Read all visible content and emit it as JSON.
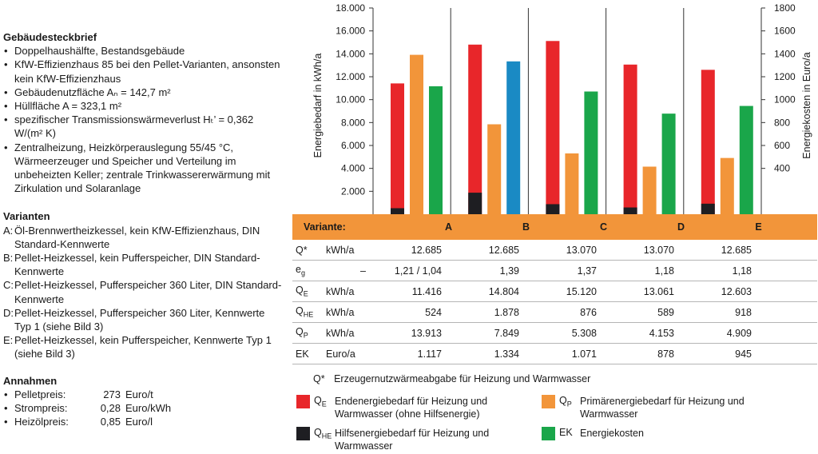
{
  "profile": {
    "heading": "Gebäudesteckbrief",
    "bullets": [
      "Doppelhaushälfte, Bestandsgebäude",
      "KfW-Effizienzhaus 85 bei den Pellet-Varianten, ansonsten kein KfW-Effizienzhaus",
      "Gebäudenutzfläche Aₙ = 142,7 m²",
      "Hüllfläche A = 323,1 m²",
      "spezifischer Transmissionswärmeverlust Hₜ’ = 0,362 W/(m² K)",
      "Zentralheizung, Heizkörperauslegung 55/45 °C, Wärmeerzeuger und Speicher und Verteilung im unbeheizten Keller; zentrale Trinkwassererwärmung mit Zirkulation und Solaranlage"
    ]
  },
  "variants": {
    "heading": "Varianten",
    "items": [
      {
        "letter": "A:",
        "text": "Öl-Brennwertheizkessel, kein KfW-Effizienzhaus, DIN Standard-Kennwerte"
      },
      {
        "letter": "B:",
        "text": "Pellet-Heizkessel, kein Pufferspeicher, DIN Standard-Kennwerte"
      },
      {
        "letter": "C:",
        "text": "Pellet-Heizkessel, Pufferspeicher 360 Liter, DIN Standard-Kennwerte"
      },
      {
        "letter": "D:",
        "text": "Pellet-Heizkessel, Pufferspeicher 360 Liter, Kennwerte Typ 1 (siehe Bild 3)"
      },
      {
        "letter": "E:",
        "text": "Pellet-Heizkessel, kein Pufferspeicher, Kennwerte Typ 1 (siehe Bild 3)"
      }
    ]
  },
  "assumptions": {
    "heading": "Annahmen",
    "rows": [
      {
        "name": "Pelletpreis:",
        "value": "273",
        "unit": "Euro/t"
      },
      {
        "name": "Strompreis:",
        "value": "0,28",
        "unit": "Euro/kWh"
      },
      {
        "name": "Heizölpreis:",
        "value": "0,85",
        "unit": "Euro/l"
      }
    ]
  },
  "chart_data": {
    "type": "bar",
    "categories": [
      "A",
      "B",
      "C",
      "D",
      "E"
    ],
    "ylabel": "Energiebedarf in kWh/a",
    "ylabel_right": "Energiekosten in Euro/a",
    "ylim": [
      0,
      18000
    ],
    "ylim_right": [
      0,
      1800
    ],
    "yticks": [
      "2.000",
      "4.000",
      "6.000",
      "8.000",
      "10.000",
      "12.000",
      "14.000",
      "16.000",
      "18.000"
    ],
    "yticks_right": [
      "400",
      "600",
      "800",
      "1000",
      "1200",
      "1400",
      "1600",
      "1800"
    ],
    "series": [
      {
        "name": "Q_E",
        "axis": "left",
        "color": "#e8262a",
        "values": [
          11416,
          14804,
          15120,
          13061,
          12603
        ]
      },
      {
        "name": "Q_HE",
        "axis": "left",
        "color": "#1e1e22",
        "stacked_under": "Q_E",
        "values": [
          524,
          1878,
          876,
          589,
          918
        ]
      },
      {
        "name": "Q_P",
        "axis": "left",
        "color": "#f2953a",
        "values": [
          13913,
          7849,
          5308,
          4153,
          4909
        ]
      },
      {
        "name": "EK",
        "axis": "right",
        "color_default": "#1aa64a",
        "color_B": "#1a8ac4",
        "values": [
          1117,
          1334,
          1071,
          878,
          945
        ]
      }
    ]
  },
  "table": {
    "header_label": "Variante:",
    "columns": [
      "A",
      "B",
      "C",
      "D",
      "E"
    ],
    "rows": [
      {
        "sym": "Q*",
        "sub": "",
        "unit": "kWh/a",
        "values": [
          "12.685",
          "12.685",
          "13.070",
          "13.070",
          "12.685"
        ]
      },
      {
        "sym": "e",
        "sub": "g",
        "unit": "–",
        "values": [
          "1,21 / 1,04",
          "1,39",
          "1,37",
          "1,18",
          "1,18"
        ]
      },
      {
        "sym": "Q",
        "sub": "E",
        "unit": "kWh/a",
        "values": [
          "11.416",
          "14.804",
          "15.120",
          "13.061",
          "12.603"
        ]
      },
      {
        "sym": "Q",
        "sub": "HE",
        "unit": "kWh/a",
        "values": [
          "524",
          "1.878",
          "876",
          "589",
          "918"
        ]
      },
      {
        "sym": "Q",
        "sub": "P",
        "unit": "kWh/a",
        "values": [
          "13.913",
          "7.849",
          "5.308",
          "4.153",
          "4.909"
        ]
      },
      {
        "sym": "EK",
        "sub": "",
        "unit": "Euro/a",
        "values": [
          "1.117",
          "1.334",
          "1.071",
          "878",
          "945"
        ]
      }
    ]
  },
  "legend": {
    "qstar_sym": "Q*",
    "qstar_text": "Erzeugernutzwärmeabgabe für Heizung und Warmwasser",
    "items": [
      {
        "sym": "Q",
        "sub": "E",
        "text": "Endenergiebedarf für Heizung und Warmwasser (ohne Hilfsenergie)",
        "color": "#e8262a"
      },
      {
        "sym": "Q",
        "sub": "P",
        "text": "Primärenergiebedarf für Heizung und Warmwasser",
        "color": "#f2953a"
      },
      {
        "sym": "Q",
        "sub": "HE",
        "text": "Hilfsenergiebedarf für Heizung und Warmwasser",
        "color": "#1e1e22"
      },
      {
        "sym": "EK",
        "sub": "",
        "text": "Energiekosten",
        "color": "#1aa64a"
      }
    ]
  }
}
